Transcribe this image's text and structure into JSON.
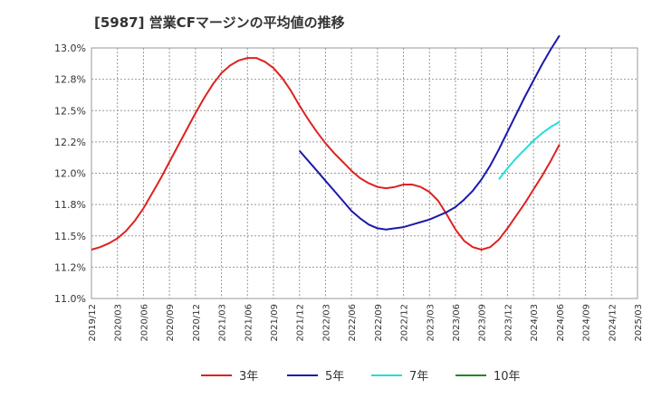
{
  "chart_data": {
    "type": "line",
    "title": "[5987]  営業CFマージンの平均値の推移",
    "xlabel": "",
    "ylabel": "",
    "ylim": [
      11.0,
      13.0
    ],
    "grid": true,
    "legend_position": "bottom",
    "y_ticks": [
      "11.0%",
      "11.2%",
      "11.5%",
      "11.8%",
      "12.0%",
      "12.2%",
      "12.5%",
      "12.8%",
      "13.0%"
    ],
    "x_ticks": [
      "2019/12",
      "2020/03",
      "2020/06",
      "2020/09",
      "2020/12",
      "2021/03",
      "2021/06",
      "2021/09",
      "2021/12",
      "2022/03",
      "2022/06",
      "2022/09",
      "2022/12",
      "2023/03",
      "2023/06",
      "2023/09",
      "2023/12",
      "2024/03",
      "2024/06",
      "2024/09",
      "2024/12",
      "2025/03"
    ],
    "series": [
      {
        "name": "3年",
        "color": "#dd2222",
        "x": [
          "2019/12",
          "2020/01",
          "2020/02",
          "2020/03",
          "2020/04",
          "2020/05",
          "2020/06",
          "2020/07",
          "2020/08",
          "2020/09",
          "2020/10",
          "2020/11",
          "2020/12",
          "2021/01",
          "2021/02",
          "2021/03",
          "2021/04",
          "2021/05",
          "2021/06",
          "2021/07",
          "2021/08",
          "2021/09",
          "2021/10",
          "2021/11",
          "2021/12",
          "2022/01",
          "2022/02",
          "2022/03",
          "2022/04",
          "2022/05",
          "2022/06",
          "2022/07",
          "2022/08",
          "2022/09",
          "2022/10",
          "2022/11",
          "2022/12",
          "2023/01",
          "2023/02",
          "2023/03",
          "2023/04",
          "2023/05",
          "2023/06",
          "2023/07",
          "2023/08",
          "2023/09",
          "2023/10",
          "2023/11",
          "2023/12",
          "2024/01",
          "2024/02",
          "2024/03",
          "2024/04",
          "2024/05",
          "2024/06"
        ],
        "values": [
          11.39,
          11.41,
          11.44,
          11.48,
          11.54,
          11.62,
          11.72,
          11.84,
          11.96,
          12.09,
          12.22,
          12.35,
          12.48,
          12.6,
          12.71,
          12.8,
          12.86,
          12.9,
          12.92,
          12.92,
          12.89,
          12.84,
          12.76,
          12.66,
          12.54,
          12.43,
          12.33,
          12.24,
          12.16,
          12.09,
          12.02,
          11.96,
          11.92,
          11.89,
          11.88,
          11.89,
          11.91,
          11.91,
          11.89,
          11.85,
          11.78,
          11.67,
          11.55,
          11.46,
          11.41,
          11.39,
          11.41,
          11.47,
          11.56,
          11.66,
          11.76,
          11.87,
          11.98,
          12.1,
          12.23
        ]
      },
      {
        "name": "5年",
        "color": "#1a1aaa",
        "x": [
          "2021/12",
          "2022/01",
          "2022/02",
          "2022/03",
          "2022/04",
          "2022/05",
          "2022/06",
          "2022/07",
          "2022/08",
          "2022/09",
          "2022/10",
          "2022/11",
          "2022/12",
          "2023/01",
          "2023/02",
          "2023/03",
          "2023/04",
          "2023/05",
          "2023/06",
          "2023/07",
          "2023/08",
          "2023/09",
          "2023/10",
          "2023/11",
          "2023/12",
          "2024/01",
          "2024/02",
          "2024/03",
          "2024/04",
          "2024/05",
          "2024/06"
        ],
        "values": [
          12.18,
          12.1,
          12.02,
          11.94,
          11.86,
          11.78,
          11.7,
          11.64,
          11.59,
          11.56,
          11.55,
          11.56,
          11.57,
          11.59,
          11.61,
          11.63,
          11.66,
          11.69,
          11.73,
          11.79,
          11.86,
          11.95,
          12.06,
          12.19,
          12.33,
          12.47,
          12.61,
          12.74,
          12.87,
          12.99,
          13.1
        ]
      },
      {
        "name": "7年",
        "color": "#22dddd",
        "x": [
          "2023/11",
          "2023/12",
          "2024/01",
          "2024/02",
          "2024/03",
          "2024/04",
          "2024/05",
          "2024/06"
        ],
        "values": [
          11.95,
          12.04,
          12.12,
          12.19,
          12.26,
          12.32,
          12.37,
          12.41
        ]
      },
      {
        "name": "10年",
        "color": "#228822",
        "x": [],
        "values": []
      }
    ]
  }
}
